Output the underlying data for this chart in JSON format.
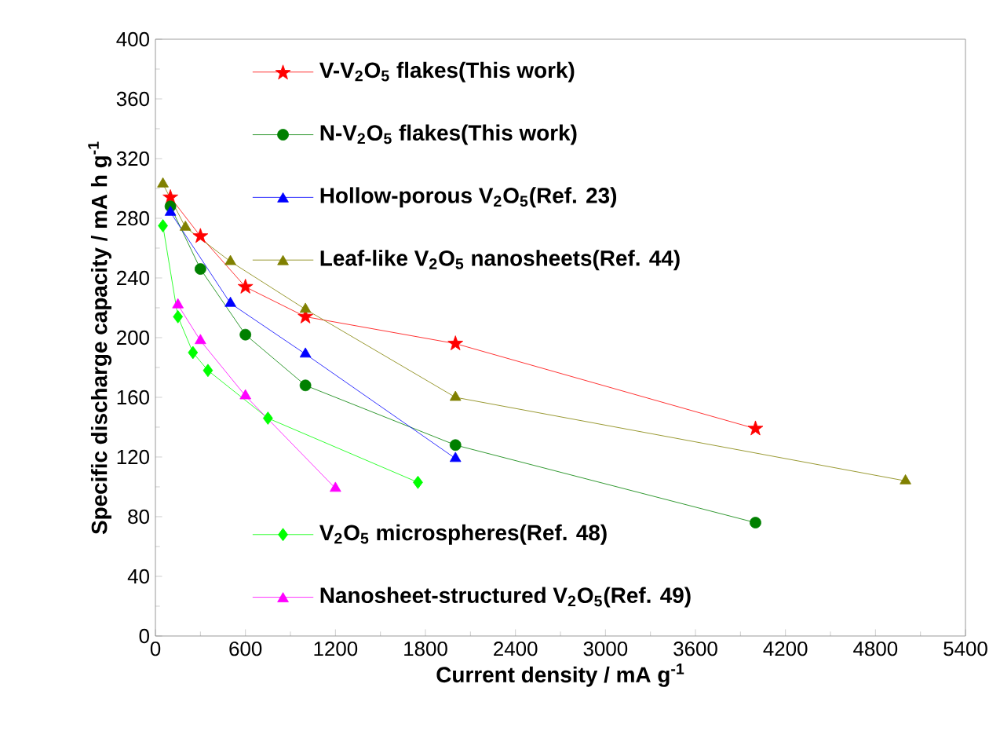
{
  "chart_data": {
    "type": "line",
    "xlabel": "Current density /  mA g$^{-1}$",
    "ylabel": "Specific discharge capacity / mA h g$^{-1}$",
    "xlim": [
      0,
      5400
    ],
    "xticks": [
      0,
      600,
      1200,
      1800,
      2400,
      3000,
      3600,
      4200,
      4800,
      5400
    ],
    "ylim": [
      0,
      400
    ],
    "yticks": [
      0,
      40,
      80,
      120,
      160,
      200,
      240,
      280,
      320,
      360,
      400
    ],
    "legend": "top left",
    "grid": false,
    "series": [
      {
        "name": "V-V$_{2}$O$_{5}$ flakes(This work)",
        "color": "#ff0000",
        "marker": "star",
        "x": [
          100,
          300,
          600,
          1000,
          2000,
          4000
        ],
        "values": [
          294,
          268,
          234,
          214,
          196,
          139
        ]
      },
      {
        "name": "N-V$_{2}$O$_{5}$ flakes(This work)",
        "color": "#008000",
        "marker": "circle",
        "x": [
          100,
          300,
          600,
          1000,
          2000,
          4000
        ],
        "values": [
          288,
          246,
          202,
          168,
          128,
          76
        ]
      },
      {
        "name": "Hollow-porous V$_{2}$O$_{5}$(Ref. 23)",
        "color": "#0000ff",
        "marker": "triangle",
        "x": [
          100,
          500,
          1000,
          2000
        ],
        "values": [
          284,
          223,
          189,
          119
        ]
      },
      {
        "name": "Leaf-like V$_{2}$O$_{5}$ nanosheets(Ref. 44)",
        "color": "#808000",
        "marker": "triangle",
        "x": [
          50,
          200,
          500,
          1000,
          2000,
          5000
        ],
        "values": [
          303,
          274,
          251,
          219,
          160,
          104
        ]
      },
      {
        "name": "V$_{2}$O$_{5}$ microspheres(Ref. 48)",
        "color": "#00ff00",
        "marker": "diamond",
        "x": [
          50,
          150,
          250,
          350,
          750,
          1750
        ],
        "values": [
          275,
          214,
          190,
          178,
          146,
          103
        ]
      },
      {
        "name": "Nanosheet-structured V$_{2}$O$_{5}$(Ref. 49)",
        "color": "#ff00ff",
        "marker": "triangle",
        "x": [
          150,
          300,
          600,
          1200
        ],
        "values": [
          222,
          198,
          161,
          99
        ]
      }
    ]
  }
}
